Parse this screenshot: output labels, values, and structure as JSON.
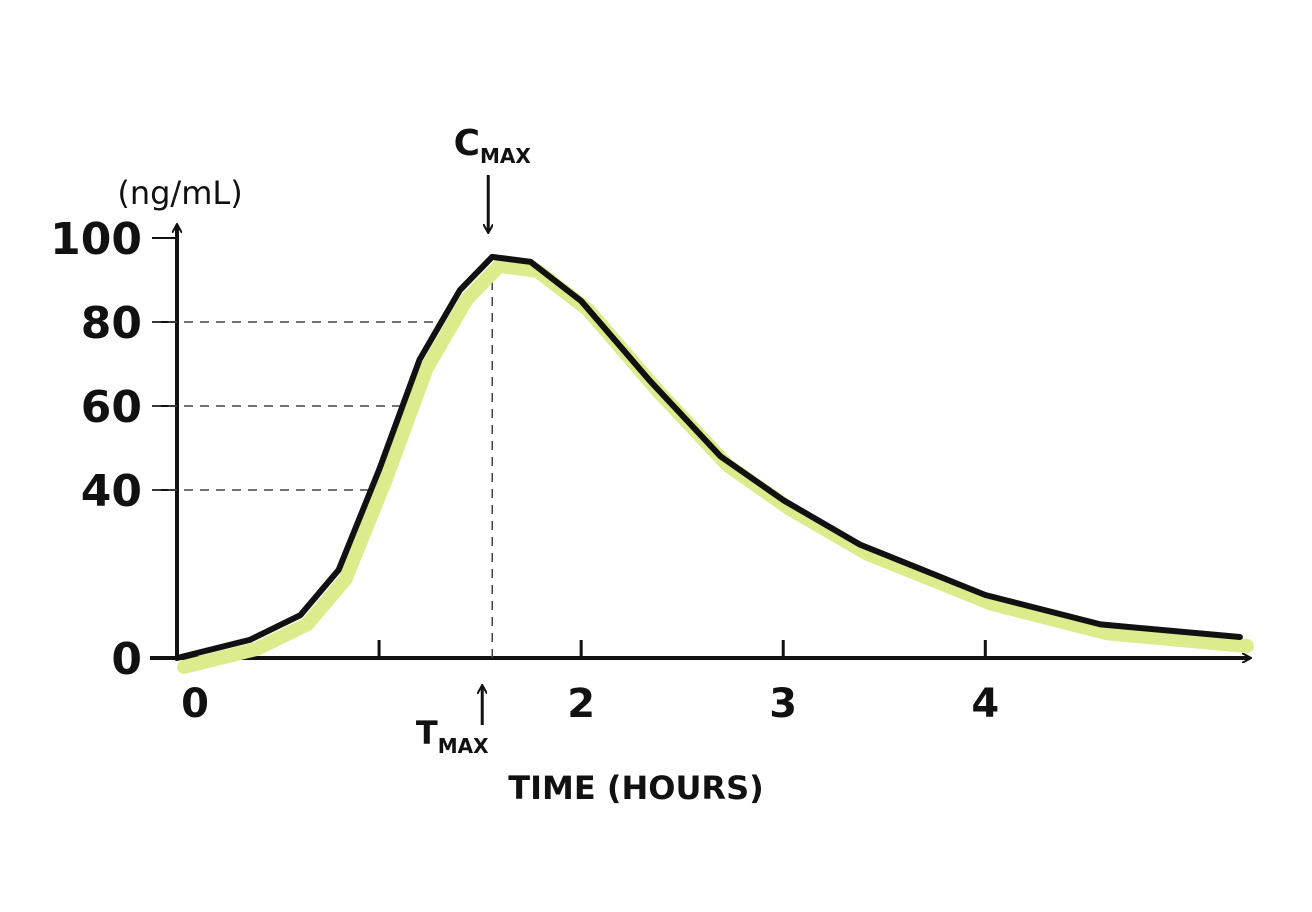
{
  "chart_data": {
    "type": "line",
    "y_label": "(ng/mL)",
    "x_label": "TIME (HOURS)",
    "cmax_label": {
      "text": "C",
      "subscript": "MAX"
    },
    "tmax_label": {
      "text": "T",
      "subscript": "MAX"
    },
    "x": [
      0,
      0.36,
      0.61,
      0.8,
      1.0,
      1.2,
      1.4,
      1.56,
      1.75,
      2.0,
      2.34,
      2.69,
      3.0,
      3.38,
      4.0,
      4.57,
      5.26
    ],
    "series": [
      {
        "color": "#111111",
        "highlight": "#dcec8c",
        "values": [
          0,
          4.3,
          10.2,
          21,
          44.8,
          71,
          87.6,
          95.5,
          94.3,
          85,
          66,
          48,
          37.6,
          27,
          15,
          8,
          5
        ]
      }
    ],
    "xlim": [
      0,
      5.3
    ],
    "xticks": [
      0,
      {
        "value": 1,
        "label": null
      },
      2,
      3,
      4
    ],
    "ylim": [
      0,
      100
    ],
    "yticks": [
      0,
      40,
      60,
      80,
      100
    ],
    "dashed_guides": [
      40,
      60,
      80
    ]
  }
}
